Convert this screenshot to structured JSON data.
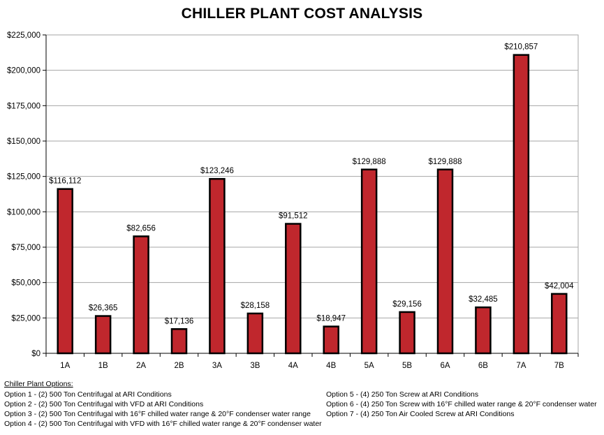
{
  "chart_data": {
    "type": "bar",
    "title": "CHILLER PLANT COST ANALYSIS",
    "xlabel": "",
    "ylabel": "",
    "categories": [
      "1A",
      "1B",
      "2A",
      "2B",
      "3A",
      "3B",
      "4A",
      "4B",
      "5A",
      "5B",
      "6A",
      "6B",
      "7A",
      "7B"
    ],
    "values": [
      116112,
      26365,
      82656,
      17136,
      123246,
      28158,
      91512,
      18947,
      129888,
      29156,
      129888,
      32485,
      210857,
      42004
    ],
    "data_labels": [
      "$116,112",
      "$26,365",
      "$82,656",
      "$17,136",
      "$123,246",
      "$28,158",
      "$91,512",
      "$18,947",
      "$129,888",
      "$29,156",
      "$129,888",
      "$32,485",
      "$210,857",
      "$42,004"
    ],
    "ylim": [
      0,
      225000
    ],
    "yticks": [
      0,
      25000,
      50000,
      75000,
      100000,
      125000,
      150000,
      175000,
      200000,
      225000
    ],
    "ytick_labels": [
      "$0",
      "$25,000",
      "$50,000",
      "$75,000",
      "$100,000",
      "$125,000",
      "$150,000",
      "$175,000",
      "$200,000",
      "$225,000"
    ],
    "grid": true,
    "bar_color": "#c0272d",
    "bar_edge_color": "#000000",
    "grid_color": "#a6a6a6"
  },
  "notes": {
    "heading": "Chiller Plant Options:",
    "left": [
      "Option 1 - (2) 500 Ton Centrifugal at ARI Conditions",
      "Option 2 - (2) 500 Ton Centrifugal with VFD at ARI Conditions",
      "Option 3 - (2) 500 Ton Centrifugal with 16°F chilled water range & 20°F condenser water range",
      "Option 4 - (2) 500 Ton Centrifugal with VFD with 16°F chilled water range & 20°F condenser water"
    ],
    "right": [
      "Option 5 - (4) 250 Ton Screw at ARI Conditions",
      "Option 6 - (4) 250 Ton Screw with 16°F chilled water range & 20°F condenser water",
      "Option 7 - (4) 250 Ton Air Cooled Screw at ARI Conditions"
    ]
  }
}
